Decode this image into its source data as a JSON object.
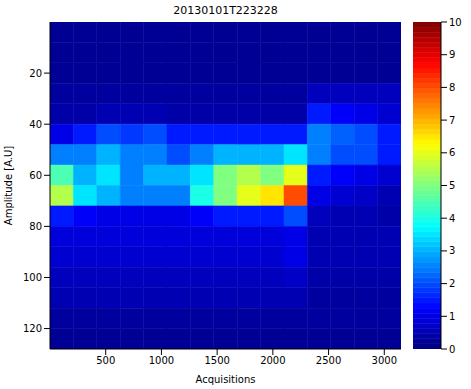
{
  "chart_data": {
    "type": "heatmap",
    "title": "20130101T223228",
    "x_label": "Acquisitions",
    "y_label": "Amplitude [A.U]",
    "color": "jet",
    "xlim": [
      0,
      3150
    ],
    "ylim": [
      0,
      128
    ],
    "xticks": [
      500,
      1000,
      1500,
      2000,
      2500,
      3000
    ],
    "yticks": [
      20,
      40,
      60,
      80,
      100,
      120
    ],
    "x_bins": [
      0,
      210,
      420,
      630,
      840,
      1050,
      1260,
      1470,
      1680,
      1890,
      2100,
      2310,
      2520,
      2730,
      2940,
      3150
    ],
    "y_bins": [
      0,
      8,
      16,
      24,
      32,
      40,
      48,
      56,
      64,
      72,
      80,
      88,
      96,
      104,
      112,
      120,
      128
    ],
    "cells": [
      [
        0.2,
        0.2,
        0.2,
        0.2,
        0.2,
        0.2,
        0.2,
        0.2,
        0.2,
        0.2,
        0.2,
        0.2,
        0.2,
        0.2,
        0.2
      ],
      [
        0.2,
        0.2,
        0.2,
        0.2,
        0.2,
        0.2,
        0.2,
        0.2,
        0.2,
        0.2,
        0.2,
        0.2,
        0.2,
        0.2,
        0.2
      ],
      [
        0.2,
        0.2,
        0.2,
        0.2,
        0.2,
        0.2,
        0.2,
        0.2,
        0.2,
        0.2,
        0.2,
        0.2,
        0.2,
        0.2,
        0.2
      ],
      [
        0.3,
        0.3,
        0.3,
        0.3,
        0.3,
        0.3,
        0.3,
        0.3,
        0.3,
        0.3,
        0.3,
        0.6,
        0.6,
        0.6,
        0.6
      ],
      [
        0.4,
        0.4,
        0.5,
        0.5,
        0.5,
        0.4,
        0.4,
        0.4,
        0.4,
        0.4,
        0.4,
        1.5,
        1.2,
        1,
        0.8
      ],
      [
        1,
        1.5,
        2,
        1.8,
        2,
        1.5,
        1.5,
        1.5,
        1.5,
        1.5,
        1.5,
        2.5,
        2.2,
        2,
        1.5
      ],
      [
        2.5,
        2.5,
        3,
        2.5,
        2.5,
        2,
        2.5,
        3,
        3,
        3,
        3.5,
        2.5,
        2,
        2,
        1.5
      ],
      [
        4.5,
        3,
        3.5,
        2.5,
        3,
        3,
        3.5,
        5,
        5.5,
        5,
        6,
        1.5,
        1.2,
        1,
        0.8
      ],
      [
        5.5,
        3.5,
        3,
        2.5,
        2.5,
        2.5,
        4,
        5,
        6,
        6.5,
        8,
        1,
        0.8,
        0.7,
        0.5
      ],
      [
        1.5,
        1.2,
        1,
        1,
        1,
        1,
        1.2,
        1.5,
        1.5,
        1.5,
        2,
        0.6,
        0.5,
        0.5,
        0.4
      ],
      [
        0.9,
        0.9,
        0.9,
        0.9,
        0.9,
        0.9,
        0.9,
        0.9,
        0.9,
        0.9,
        1,
        0.5,
        0.5,
        0.5,
        0.5
      ],
      [
        0.8,
        0.8,
        0.8,
        0.8,
        0.8,
        0.8,
        0.8,
        0.8,
        0.8,
        0.8,
        1,
        0.5,
        0.5,
        0.5,
        0.5
      ],
      [
        0.6,
        0.6,
        0.6,
        0.6,
        0.6,
        0.6,
        0.6,
        0.6,
        0.6,
        0.6,
        0.7,
        0.4,
        0.4,
        0.4,
        0.4
      ],
      [
        0.5,
        0.5,
        0.5,
        0.5,
        0.5,
        0.5,
        0.5,
        0.5,
        0.5,
        0.5,
        0.5,
        0.3,
        0.3,
        0.3,
        0.3
      ],
      [
        0.3,
        0.3,
        0.3,
        0.3,
        0.3,
        0.3,
        0.3,
        0.3,
        0.3,
        0.3,
        0.3,
        0.3,
        0.3,
        0.3,
        0.3
      ],
      [
        0.2,
        0.2,
        0.2,
        0.2,
        0.2,
        0.2,
        0.2,
        0.2,
        0.2,
        0.2,
        0.2,
        0.2,
        0.2,
        0.2,
        0.2
      ]
    ],
    "colorbar": {
      "range": [
        0,
        10
      ],
      "ticks": [
        0,
        1,
        2,
        3,
        4,
        5,
        6,
        7,
        8,
        9,
        10
      ]
    }
  }
}
